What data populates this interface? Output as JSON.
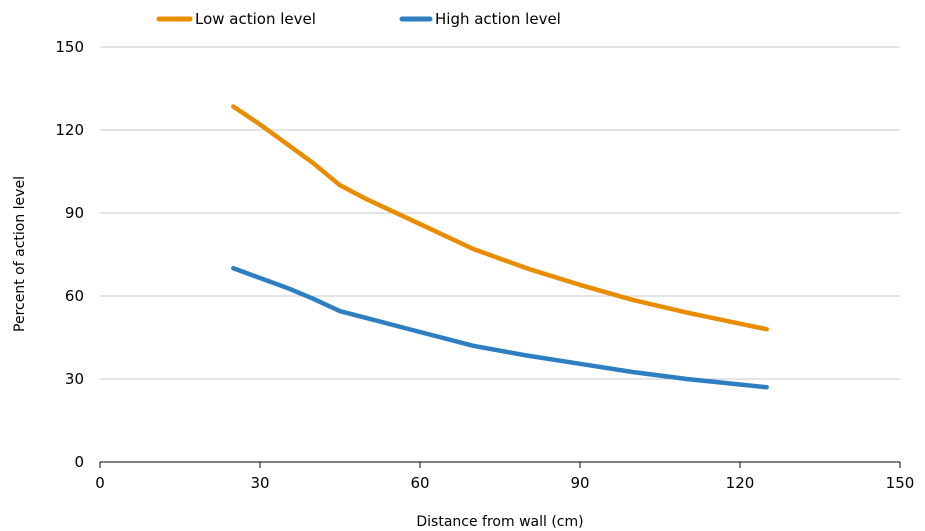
{
  "chart_data": {
    "type": "line",
    "title": "",
    "xlabel": "Distance from wall (cm)",
    "ylabel": "Percent of action level",
    "xlim": [
      0,
      150
    ],
    "ylim": [
      0,
      150
    ],
    "xticks": [
      0,
      30,
      60,
      90,
      120,
      150
    ],
    "yticks": [
      0,
      30,
      60,
      90,
      120,
      150
    ],
    "grid": "horizontal",
    "legend_position": "top-left",
    "series": [
      {
        "name": "Low action level",
        "color": "#ea8c00",
        "points": [
          {
            "x": 25,
            "y": 128.5
          },
          {
            "x": 30,
            "y": 122
          },
          {
            "x": 35,
            "y": 115
          },
          {
            "x": 40,
            "y": 108
          },
          {
            "x": 45,
            "y": 100
          },
          {
            "x": 50,
            "y": 95
          },
          {
            "x": 60,
            "y": 86
          },
          {
            "x": 70,
            "y": 77
          },
          {
            "x": 80,
            "y": 70
          },
          {
            "x": 90,
            "y": 64
          },
          {
            "x": 100,
            "y": 58.5
          },
          {
            "x": 110,
            "y": 54
          },
          {
            "x": 120,
            "y": 50
          },
          {
            "x": 125,
            "y": 48
          }
        ]
      },
      {
        "name": "High action level",
        "color": "#2d7fc1",
        "points": [
          {
            "x": 25,
            "y": 70
          },
          {
            "x": 30,
            "y": 66.5
          },
          {
            "x": 35,
            "y": 63
          },
          {
            "x": 40,
            "y": 59
          },
          {
            "x": 45,
            "y": 54.5
          },
          {
            "x": 50,
            "y": 52
          },
          {
            "x": 60,
            "y": 47
          },
          {
            "x": 70,
            "y": 42
          },
          {
            "x": 80,
            "y": 38.5
          },
          {
            "x": 90,
            "y": 35.5
          },
          {
            "x": 100,
            "y": 32.5
          },
          {
            "x": 110,
            "y": 30
          },
          {
            "x": 120,
            "y": 28
          },
          {
            "x": 125,
            "y": 27
          }
        ]
      }
    ]
  }
}
